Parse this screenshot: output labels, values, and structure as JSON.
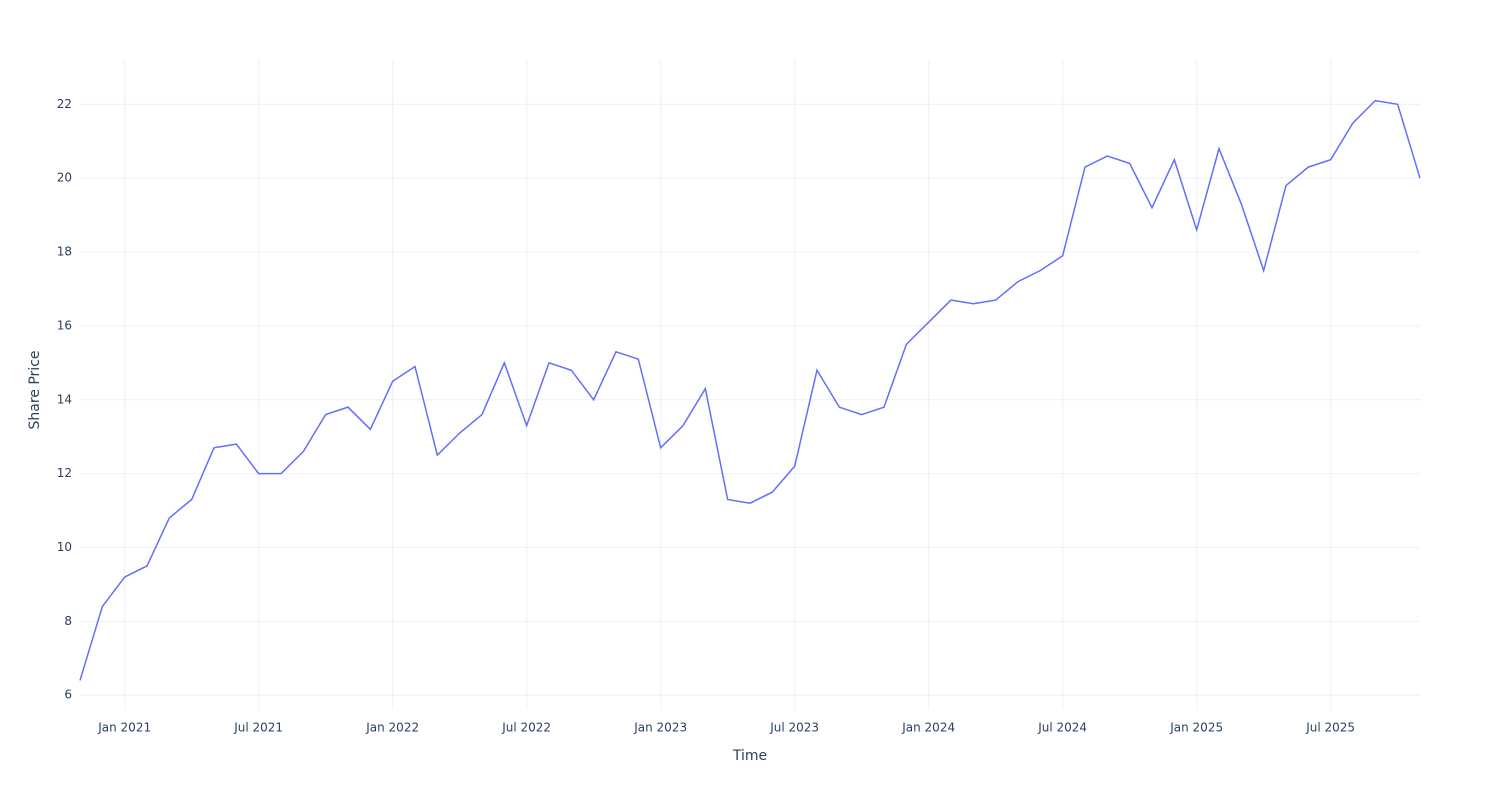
{
  "chart_data": {
    "type": "line",
    "x_label": "Time",
    "y_label": "Share Price",
    "x": [
      "2020-11",
      "2020-12",
      "2021-01",
      "2021-02",
      "2021-03",
      "2021-04",
      "2021-05",
      "2021-06",
      "2021-07",
      "2021-08",
      "2021-09",
      "2021-10",
      "2021-11",
      "2021-12",
      "2022-01",
      "2022-02",
      "2022-03",
      "2022-04",
      "2022-05",
      "2022-06",
      "2022-07",
      "2022-08",
      "2022-09",
      "2022-10",
      "2022-11",
      "2022-12",
      "2023-01",
      "2023-02",
      "2023-03",
      "2023-04",
      "2023-05",
      "2023-06",
      "2023-07",
      "2023-08",
      "2023-09",
      "2023-10",
      "2023-11",
      "2023-12",
      "2024-01",
      "2024-02",
      "2024-03",
      "2024-04",
      "2024-05",
      "2024-06",
      "2024-07",
      "2024-08",
      "2024-09",
      "2024-10",
      "2024-11",
      "2024-12",
      "2025-01",
      "2025-02",
      "2025-03",
      "2025-04",
      "2025-05",
      "2025-06",
      "2025-07",
      "2025-08",
      "2025-09",
      "2025-10",
      "2025-11"
    ],
    "series": [
      {
        "name": "Share Price",
        "color": "#636efa",
        "values": [
          6.4,
          8.4,
          9.2,
          9.5,
          10.8,
          11.3,
          12.7,
          12.8,
          12.0,
          12.0,
          12.6,
          13.6,
          13.8,
          13.2,
          14.5,
          14.9,
          12.5,
          13.1,
          13.6,
          15.0,
          13.3,
          15.0,
          14.8,
          14.0,
          15.3,
          15.1,
          12.7,
          13.3,
          14.3,
          11.3,
          11.2,
          11.5,
          12.2,
          14.8,
          13.8,
          13.6,
          13.8,
          15.5,
          16.1,
          16.7,
          16.6,
          16.7,
          17.2,
          17.5,
          17.9,
          20.3,
          20.6,
          20.4,
          19.2,
          20.5,
          18.6,
          20.8,
          19.3,
          17.5,
          19.8,
          20.3,
          20.5,
          21.5,
          22.1,
          22.0,
          20.0
        ]
      }
    ],
    "xlim": [
      "2020-11",
      "2025-11"
    ],
    "xticks": [
      {
        "value": "2021-01",
        "label": "Jan 2021"
      },
      {
        "value": "2021-07",
        "label": "Jul 2021"
      },
      {
        "value": "2022-01",
        "label": "Jan 2022"
      },
      {
        "value": "2022-07",
        "label": "Jul 2022"
      },
      {
        "value": "2023-01",
        "label": "Jan 2023"
      },
      {
        "value": "2023-07",
        "label": "Jul 2023"
      },
      {
        "value": "2024-01",
        "label": "Jan 2024"
      },
      {
        "value": "2024-07",
        "label": "Jul 2024"
      },
      {
        "value": "2025-01",
        "label": "Jan 2025"
      },
      {
        "value": "2025-07",
        "label": "Jul 2025"
      }
    ],
    "ylim": [
      5.6,
      23.2
    ],
    "yticks": [
      6,
      8,
      10,
      12,
      14,
      16,
      18,
      20,
      22
    ],
    "grid": true
  }
}
